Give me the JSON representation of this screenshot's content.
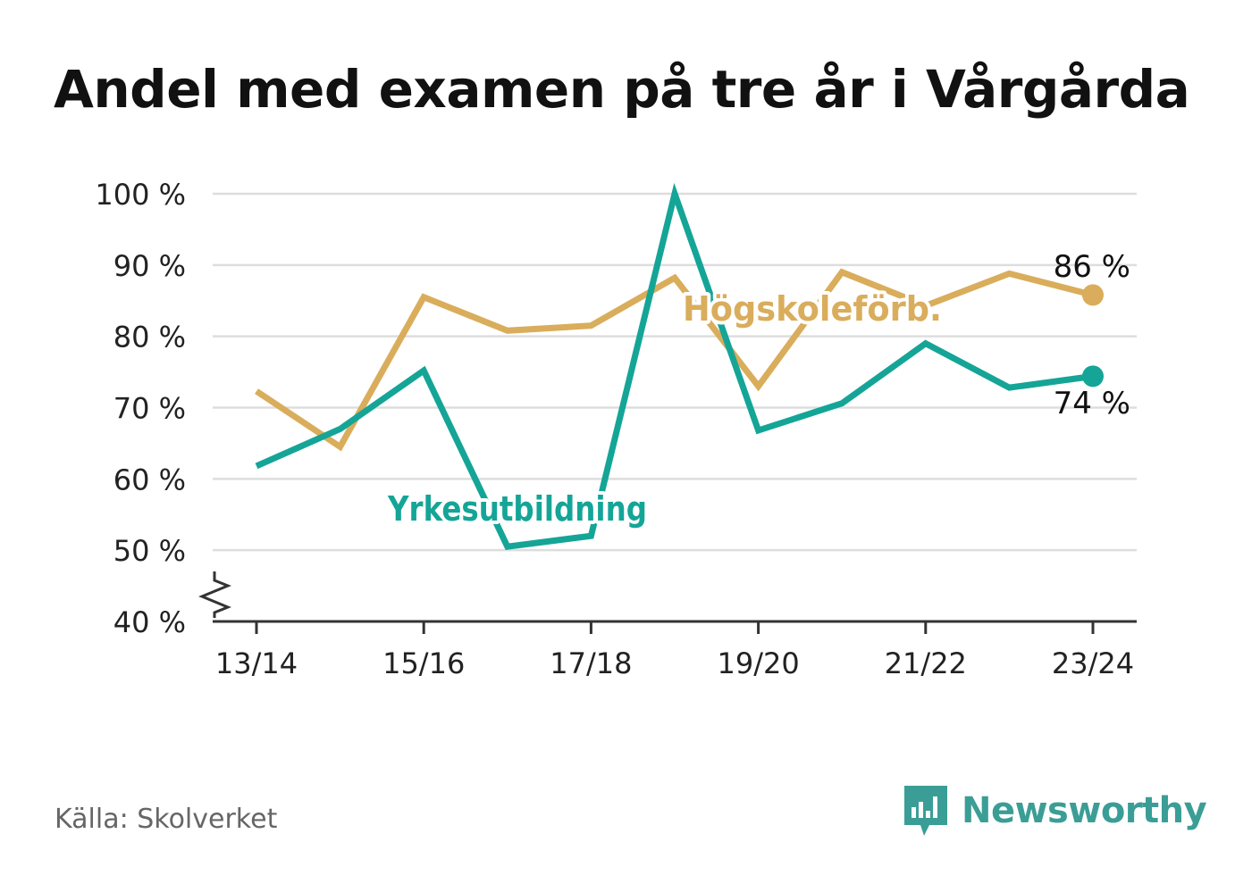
{
  "title": "Andel med examen på tre år i Vårgårda",
  "source": "Källa: Skolverket",
  "brand": {
    "name": "Newsworthy",
    "icon": "newsworthy-logo-icon"
  },
  "colors": {
    "hogskole": "#d9ad5b",
    "yrke": "#14a597",
    "grid": "#dddddd",
    "axis": "#333333",
    "text": "#222222"
  },
  "chart_data": {
    "type": "line",
    "title": "Andel med examen på tre år i Vårgårda",
    "x": [
      "13/14",
      "14/15",
      "15/16",
      "16/17",
      "17/18",
      "18/19",
      "19/20",
      "20/21",
      "21/22",
      "22/23",
      "23/24"
    ],
    "x_tick_labels": [
      "13/14",
      "15/16",
      "17/18",
      "19/20",
      "21/22",
      "23/24"
    ],
    "y_tick_labels": [
      "40 %",
      "50 %",
      "60 %",
      "70 %",
      "80 %",
      "90 %",
      "100 %"
    ],
    "ylim": [
      40,
      100
    ],
    "y_axis_break": true,
    "grid": true,
    "series": [
      {
        "name": "Högskoleförb.",
        "color": "#d9ad5b",
        "values": [
          72.3,
          64.5,
          85.5,
          80.8,
          81.5,
          88.2,
          73.0,
          89.0,
          84.3,
          88.8,
          85.8
        ],
        "end_label": "86 %"
      },
      {
        "name": "Yrkesutbildning",
        "color": "#14a597",
        "values": [
          61.8,
          67.0,
          75.2,
          50.5,
          52.0,
          100,
          66.8,
          70.6,
          79.0,
          72.8,
          74.4
        ],
        "end_label": "74 %"
      }
    ]
  }
}
